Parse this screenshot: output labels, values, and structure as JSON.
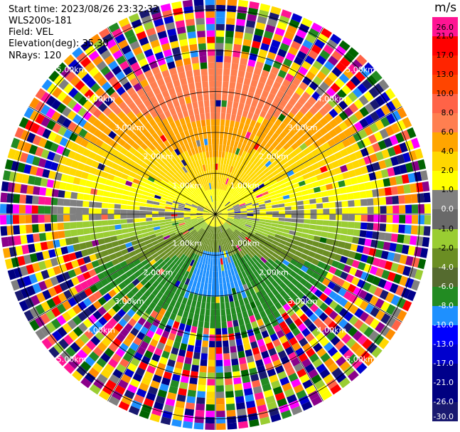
{
  "header": {
    "start_time": "Start time: 2023/08/26 23:32:32",
    "instrument": "WLS200s-181",
    "field": "Field: VEL",
    "elevation": "Elevation(deg): 35.30",
    "nrays": "NRays: 120"
  },
  "colorbar": {
    "unit": "m/s",
    "ticks": [
      "26.0",
      "21.0",
      "17.0",
      "13.0",
      "10.0",
      "8.0",
      "6.0",
      "4.0",
      "2.0",
      "1.0",
      "0.0",
      "-1.0",
      "-2.0",
      "-4.0",
      "-6.0",
      "-8.0",
      "-10.0",
      "-13.0",
      "-17.0",
      "-21.0",
      "-26.0",
      "-30.0"
    ],
    "colors": [
      "#ff1493",
      "#ff0000",
      "#ff2400",
      "#ff4500",
      "#ff6347",
      "#ff7f50",
      "#ffa500",
      "#ffd700",
      "#ffff00",
      "#808080",
      "#696969",
      "#9acd32",
      "#6b8e23",
      "#556b2f",
      "#228b22",
      "#1e90ff",
      "#0000ff",
      "#0000cd",
      "#00008b",
      "#000080",
      "#191970"
    ]
  },
  "range_labels": [
    "1.00km",
    "2.00km",
    "3.00km",
    "4.00km",
    "5.00km"
  ],
  "ppi": {
    "nrays": 120,
    "ngates": 34
  }
}
